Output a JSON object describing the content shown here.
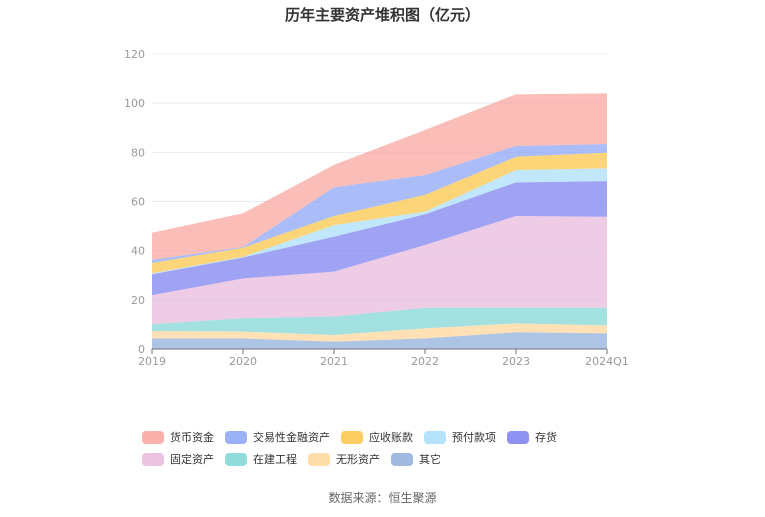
{
  "chart_data": {
    "type": "area",
    "stacked": true,
    "title": "历年主要资产堆积图（亿元）",
    "xlabel": "",
    "ylabel": "",
    "ylim": [
      0,
      120
    ],
    "yticks": [
      0,
      20,
      40,
      60,
      80,
      100,
      120
    ],
    "grid": true,
    "legend_position": "bottom",
    "categories": [
      "2019",
      "2020",
      "2021",
      "2022",
      "2023",
      "2024Q1"
    ],
    "series": [
      {
        "name": "其它",
        "color": "#8fadd9",
        "values": [
          4.3,
          4.3,
          3.0,
          4.3,
          6.8,
          6.4
        ]
      },
      {
        "name": "无形资产",
        "color": "#ffd699",
        "values": [
          3.0,
          2.8,
          2.7,
          4.1,
          3.6,
          3.2
        ]
      },
      {
        "name": "在建工程",
        "color": "#7fd6d6",
        "values": [
          2.8,
          5.4,
          7.5,
          8.4,
          6.4,
          7.2
        ]
      },
      {
        "name": "固定资产",
        "color": "#e7b8dc",
        "values": [
          11.8,
          16.2,
          18.3,
          25.5,
          37.3,
          37.0
        ]
      },
      {
        "name": "存货",
        "color": "#7b7ff0",
        "values": [
          8.5,
          8.5,
          14.2,
          12.5,
          13.7,
          14.5
        ]
      },
      {
        "name": "预付款项",
        "color": "#a8defa",
        "values": [
          0.4,
          0.3,
          4.7,
          1.1,
          5.0,
          5.2
        ]
      },
      {
        "name": "应收账款",
        "color": "#fcc545",
        "values": [
          4.2,
          3.7,
          3.7,
          6.8,
          5.4,
          6.4
        ]
      },
      {
        "name": "交易性金融资产",
        "color": "#89a3f5",
        "values": [
          1.3,
          0.3,
          11.7,
          8.1,
          4.4,
          3.5
        ]
      },
      {
        "name": "货币资金",
        "color": "#f9a39c",
        "values": [
          11.0,
          13.7,
          9.1,
          18.3,
          21.0,
          20.6
        ]
      }
    ],
    "legend_order": [
      "货币资金",
      "交易性金融资产",
      "应收账款",
      "预付款项",
      "存货",
      "固定资产",
      "在建工程",
      "无形资产",
      "其它"
    ],
    "source": "数据来源：恒生聚源"
  }
}
